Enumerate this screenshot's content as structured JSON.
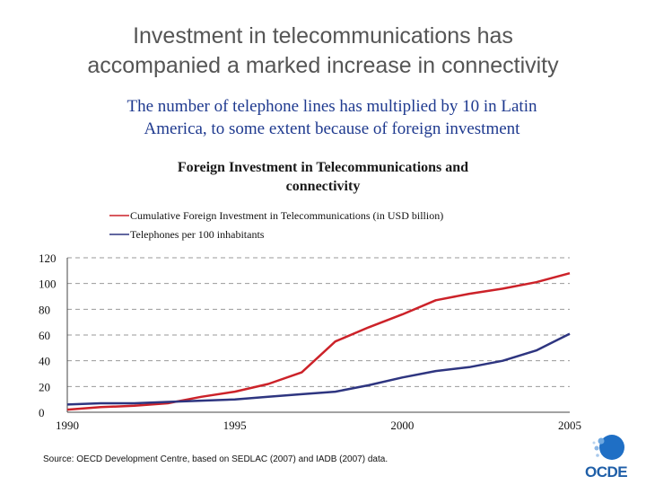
{
  "slide": {
    "title_line1": "Investment in telecommunications has",
    "title_line2": "accompanied a marked increase in connectivity",
    "subtitle_line1": "The number of telephone lines has multiplied by 10 in Latin",
    "subtitle_line2": "America, to some extent because of foreign investment",
    "source": "Source: OECD Development Centre, based on SEDLAC (2007)  and IADB (2007) data.",
    "logo_text": "OCDE"
  },
  "chart_data": {
    "type": "line",
    "title_line1": "Foreign Investment in Telecommunications and",
    "title_line2": "connectivity",
    "xlabel": "",
    "ylabel": "",
    "xlim": [
      1990,
      2005
    ],
    "ylim": [
      0,
      120
    ],
    "xticks": [
      "1990",
      "1995",
      "2000",
      "2005"
    ],
    "xtick_values": [
      1990,
      1995,
      2000,
      2005
    ],
    "yticks": [
      "0",
      "20",
      "40",
      "60",
      "80",
      "100",
      "120"
    ],
    "ytick_values": [
      0,
      20,
      40,
      60,
      80,
      100,
      120
    ],
    "grid": true,
    "legend_position": "top",
    "x": [
      1990,
      1991,
      1992,
      1993,
      1994,
      1995,
      1996,
      1997,
      1998,
      1999,
      2000,
      2001,
      2002,
      2003,
      2004,
      2005
    ],
    "series": [
      {
        "name": "Cumulative Foreign Investment in Telecommunications (in USD billion)",
        "color": "#cc2229",
        "values": [
          2,
          4,
          5,
          7,
          12,
          16,
          22,
          31,
          55,
          66,
          76,
          87,
          92,
          96,
          101,
          108
        ]
      },
      {
        "name": "Telephones per 100 inhabitants",
        "color": "#2e3580",
        "values": [
          6,
          7,
          7,
          8,
          9,
          10,
          12,
          14,
          16,
          21,
          27,
          32,
          35,
          40,
          48,
          61
        ]
      }
    ]
  }
}
